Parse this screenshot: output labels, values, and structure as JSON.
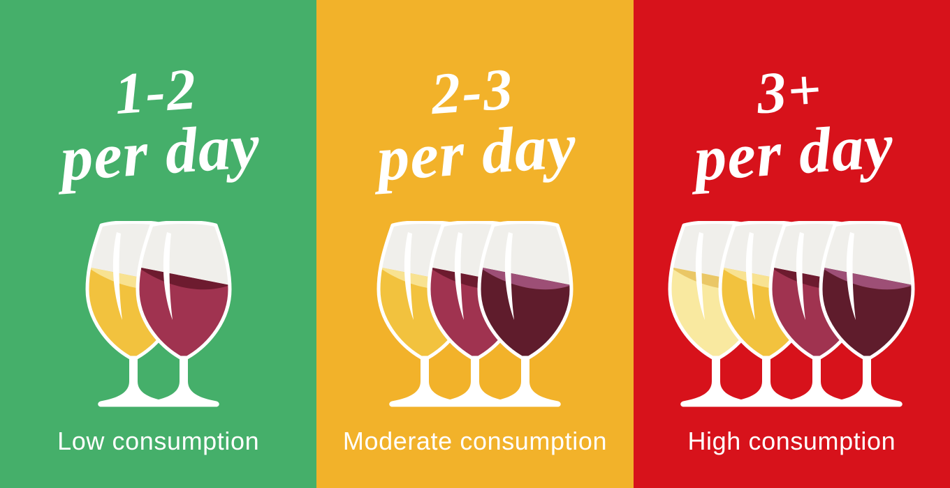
{
  "title": "Wine consumption levels infographic",
  "text_color": "#FFFFFF",
  "glass_colors": {
    "empty_bowl": "#F0EFEB",
    "glass_outline": "#FFFFFF"
  },
  "panels": [
    {
      "id": "low",
      "background": "#45AF6A",
      "amount": "1-2",
      "unit": "per day",
      "label": "Low consumption",
      "glasses": [
        {
          "type": "white-wine",
          "body": "#F2C23E",
          "surface": "#F8E291"
        },
        {
          "type": "red-wine",
          "body": "#A03350",
          "surface": "#6D1B2F"
        }
      ]
    },
    {
      "id": "moderate",
      "background": "#F2B22A",
      "amount": "2-3",
      "unit": "per day",
      "label": "Moderate consumption",
      "glasses": [
        {
          "type": "white-wine",
          "body": "#F2C23E",
          "surface": "#F8E291"
        },
        {
          "type": "red-wine",
          "body": "#A03350",
          "surface": "#6D1B2F"
        },
        {
          "type": "dark-red-wine",
          "body": "#5F1C2C",
          "surface": "#9D4F76"
        }
      ]
    },
    {
      "id": "high",
      "background": "#D7121B",
      "amount": "3+",
      "unit": "per day",
      "label": "High consumption",
      "glasses": [
        {
          "type": "pale-white-wine",
          "body": "#F9E9A0",
          "surface": "#EAC766"
        },
        {
          "type": "white-wine",
          "body": "#F2C23E",
          "surface": "#F8E291"
        },
        {
          "type": "red-wine",
          "body": "#A03350",
          "surface": "#6D1B2F"
        },
        {
          "type": "dark-red-wine",
          "body": "#5F1C2C",
          "surface": "#9D4F76"
        }
      ]
    }
  ]
}
